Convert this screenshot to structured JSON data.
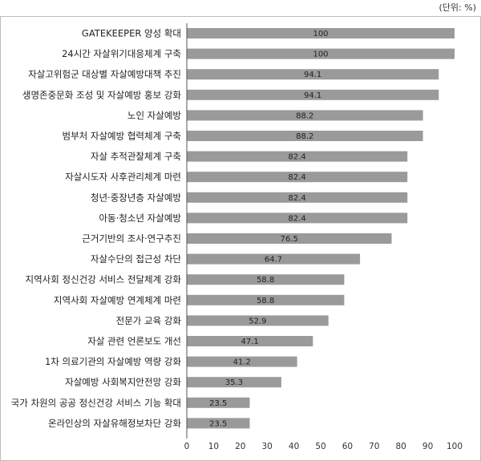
{
  "chart_data": {
    "type": "bar",
    "orientation": "horizontal",
    "unit_label": "(단위: %)",
    "title": "",
    "xlabel": "",
    "ylabel": "",
    "xlim": [
      0,
      100
    ],
    "ticks": [
      0,
      10,
      20,
      30,
      40,
      50,
      60,
      70,
      80,
      90,
      100
    ],
    "grid": false,
    "bar_color": "#9a9a9a",
    "categories": [
      "GATEKEEPER 양성 확대",
      "24시간 자살위기대응체계 구축",
      "자살고위험군 대상별 자살예방대책 추진",
      "생명존중문화 조성 및 자살예방 홍보 강화",
      "노인 자살예방",
      "범부처 자살예방 협력체계 구축",
      "자살 추적관찰체계 구축",
      "자살시도자 사후관리체계 마련",
      "청년·중장년층 자살예방",
      "아동·청소년 자살예방",
      "근거기반의 조사·연구추진",
      "자살수단의 접근성 차단",
      "지역사회 정신건강 서비스 전달체계 강화",
      "지역사회 자살예방 연계체계 마련",
      "전문가 교육 강화",
      "자살 관련 언론보도 개선",
      "1차 의료기관의 자살예방 역량 강화",
      "자살예방 사회복지안전망 강화",
      "국가 차원의 공공 정신건강 서비스 기능 확대",
      "온라인상의 자살유해정보차단 강화"
    ],
    "values": [
      100,
      100,
      94.1,
      94.1,
      88.2,
      88.2,
      82.4,
      82.4,
      82.4,
      82.4,
      76.5,
      64.7,
      58.8,
      58.8,
      52.9,
      47.1,
      41.2,
      35.3,
      23.5,
      23.5
    ],
    "value_labels": [
      "100",
      "100",
      "94.1",
      "94.1",
      "88.2",
      "88.2",
      "82.4",
      "82.4",
      "82.4",
      "82.4",
      "76.5",
      "64.7",
      "58.8",
      "58.8",
      "52.9",
      "47.1",
      "41.2",
      "35.3",
      "23.5",
      "23.5"
    ]
  }
}
